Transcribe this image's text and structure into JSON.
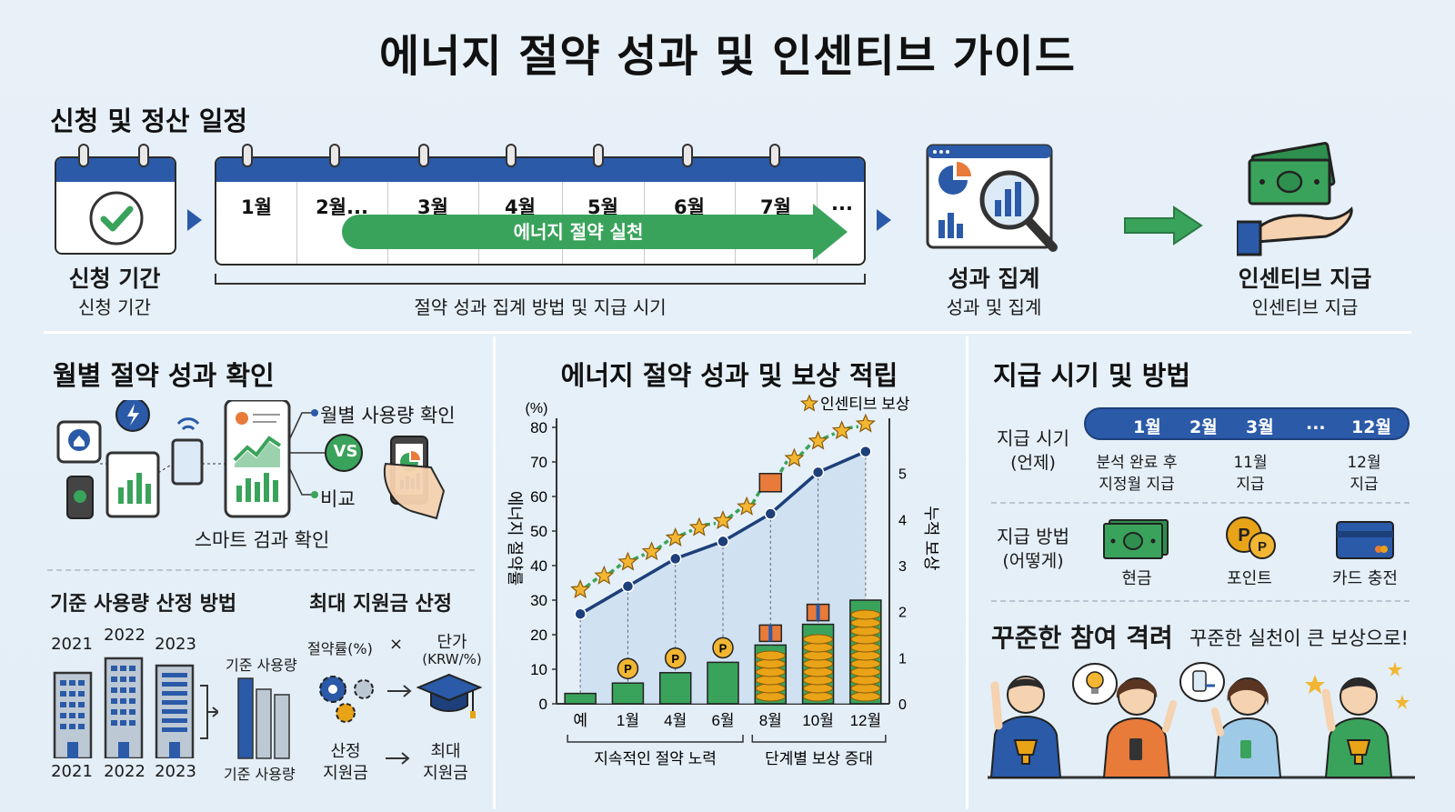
{
  "title": "에너지 절약 성과 및 인센티브 가이드",
  "schedule": {
    "title": "신청 및 정산 일정",
    "apply_label": "신청 기간",
    "apply_sub": "신청 기간",
    "months": [
      "1월",
      "2월...",
      "3월",
      "4월",
      "5월",
      "6월",
      "7월",
      "..."
    ],
    "practice_label": "에너지 절약 실천",
    "bracket_label": "절약 성과 집계 방법 및 지급 시기",
    "aggregate_label": "성과 집계",
    "aggregate_sub": "성과 및 집계",
    "incentive_label": "인센티브 지급",
    "incentive_sub": "인센티브 지급"
  },
  "monthly": {
    "title": "월별 절약 성과 확인",
    "usage_check": "월별 사용량 확인",
    "vs": "VS",
    "compare": "비교",
    "smart_check": "스마트 검과 확인"
  },
  "baseline": {
    "title": "기준 사용량 산정 방법",
    "years_top": [
      "2021",
      "2022",
      "2023"
    ],
    "years_bottom": [
      "2021",
      "2022",
      "2023"
    ],
    "base_usage_top": "기준 사용량",
    "base_usage_bottom": "기준 사용량"
  },
  "max_support": {
    "title": "최대 지원금 산정",
    "rate": "절약률(%)",
    "times": "×",
    "unit_price": "단가",
    "unit_price_unit": "(KRW/%)",
    "calc_support_1": "산정",
    "calc_support_2": "지원금",
    "max_1": "최대",
    "max_2": "지원금"
  },
  "chart": {
    "title": "에너지 절약 성과 및 보상 적립",
    "legend": "인센티브 보상",
    "group_left": "지속적인 절약 노력",
    "group_right": "단계별 보상 증대"
  },
  "chart_data": {
    "type": "line",
    "title": "에너지 절약 성과 및 보상 적립",
    "ylabel": "에너지 절약률",
    "yunit": "(%)",
    "y2label": "누적 보상",
    "categories": [
      "예",
      "1월",
      "4월",
      "6월",
      "8월",
      "10월",
      "12월"
    ],
    "ylim": [
      0,
      80
    ],
    "yticks": [
      0,
      10,
      20,
      30,
      40,
      50,
      60,
      70,
      80
    ],
    "y2lim": [
      0,
      6
    ],
    "y2ticks": [
      0,
      1,
      2,
      3,
      4,
      5
    ],
    "series": [
      {
        "name": "",
        "x": [
          0,
          1,
          2,
          3,
          4,
          5,
          6
        ],
        "values": [
          26,
          34,
          42,
          47,
          55,
          67,
          73
        ]
      },
      {
        "name": "인센티브 보상",
        "x": [
          0,
          0.5,
          1,
          1.5,
          2,
          2.5,
          3,
          3.5,
          4,
          4.5,
          5,
          5.5,
          6
        ],
        "values": [
          33,
          37,
          41,
          44,
          48,
          51,
          53,
          57,
          64,
          71,
          76,
          79,
          81
        ]
      }
    ],
    "bars": [
      3,
      6,
      9,
      12,
      17,
      23,
      30
    ],
    "grid": false,
    "legend_position": "top-right"
  },
  "payment": {
    "title": "지급 시기 및 방법",
    "when_label_1": "지급 시기",
    "when_label_2": "(언제)",
    "timeline": [
      "1월",
      "2월",
      "3월",
      "...",
      "12월"
    ],
    "when_cols": [
      {
        "line1": "분석 완료 후",
        "line2": "지정월 지급"
      },
      {
        "line1": "11월",
        "line2": "지급"
      },
      {
        "line1": "12월",
        "line2": "지급"
      }
    ],
    "how_label_1": "지급 방법",
    "how_label_2": "(어떻게)",
    "methods": [
      "현금",
      "포인트",
      "카드 충전"
    ],
    "encourage_title": "꾸준한 참여 격려",
    "encourage_sub": "꾸준한 실천이 큰 보상으로!"
  },
  "colors": {
    "blue": "#2a5aa8",
    "green": "#3aa35b",
    "gold": "#e8a317",
    "star": "#f2b632"
  }
}
